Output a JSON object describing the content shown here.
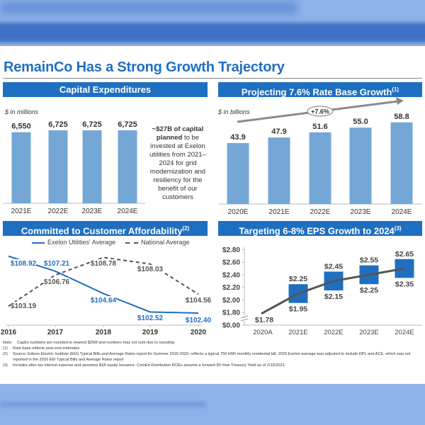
{
  "title": "RemainCo Has a Strong Growth Trajectory",
  "colors": {
    "accent": "#1f6fc0",
    "bar": "#74a7d6",
    "dark_line": "#555555",
    "eps_box": "#1f6fc0",
    "blur_bg": "#8fb1e9"
  },
  "panels": {
    "capex": {
      "header": "Capital Expenditures",
      "unit": "$ in millions",
      "note_bold": "~$27B of capital planned",
      "note_rest": " to be invested at Exelon utilities from 2021–2024 for grid modernization and resiliency for the benefit of our customers"
    },
    "ratebase": {
      "header": "Projecting 7.6% Rate Base Growth",
      "sup": "(1)",
      "unit": "$ in billions",
      "growth_label": "+7.6%"
    },
    "afford": {
      "header": "Committed to Customer Affordability",
      "sup": "(2)"
    },
    "eps": {
      "header": "Targeting 6-8% EPS Growth to 2024",
      "sup": "(3)"
    }
  },
  "chart_data": [
    {
      "type": "bar",
      "title": "Capital Expenditures",
      "ylabel": "$ in millions",
      "categories": [
        "2021E",
        "2022E",
        "2023E",
        "2024E"
      ],
      "values": [
        6550,
        6725,
        6725,
        6725
      ],
      "labels": [
        "6,550",
        "6,725",
        "6,725",
        "6,725"
      ]
    },
    {
      "type": "bar",
      "title": "Projecting 7.6% Rate Base Growth",
      "ylabel": "$ in billions",
      "categories": [
        "2020E",
        "2021E",
        "2022E",
        "2023E",
        "2024E"
      ],
      "values": [
        43.9,
        47.9,
        51.6,
        55.0,
        58.8
      ],
      "labels": [
        "43.9",
        "47.9",
        "51.6",
        "55.0",
        "58.8"
      ],
      "annotation": "+7.6%"
    },
    {
      "type": "line",
      "title": "Committed to Customer Affordability",
      "categories": [
        "2016",
        "2017",
        "2018",
        "2019",
        "2020"
      ],
      "legend_position": "top",
      "series": [
        {
          "name": "Exelon Utilities' Average",
          "values": [
            108.92,
            107.21,
            104.64,
            102.52,
            102.4
          ],
          "labels": [
            "$108.92",
            "$107.21",
            "$104.64",
            "$102.52",
            "$102.40"
          ],
          "style": "solid",
          "color": "#1f6fc0"
        },
        {
          "name": "National Average",
          "values": [
            103.19,
            106.76,
            108.78,
            108.03,
            104.56
          ],
          "labels": [
            "$103.19",
            "$106.76",
            "$108.78",
            "$108.03",
            "$104.56"
          ],
          "style": "dashed",
          "color": "#555555"
        }
      ]
    },
    {
      "type": "bar",
      "subtype": "floating-range-with-line",
      "title": "Targeting 6-8% EPS Growth to 2024",
      "categories": [
        "2020A",
        "2021E",
        "2022E",
        "2023E",
        "2024E"
      ],
      "yticks": [
        "$0.00",
        "$1.80",
        "$2.00",
        "$2.20",
        "$2.40",
        "$2.60",
        "$2.80"
      ],
      "ylim": [
        1.8,
        2.8
      ],
      "axis_break": true,
      "actual": {
        "value": 1.78,
        "label": "$1.78"
      },
      "ranges": [
        null,
        {
          "low": 1.95,
          "high": 2.25,
          "low_label": "$1.95",
          "high_label": "$2.25"
        },
        {
          "low": 2.15,
          "high": 2.45,
          "low_label": "$2.15",
          "high_label": "$2.45"
        },
        {
          "low": 2.25,
          "high": 2.55,
          "low_label": "$2.25",
          "high_label": "$2.55"
        },
        {
          "low": 2.35,
          "high": 2.65,
          "low_label": "$2.35",
          "high_label": "$2.65"
        }
      ],
      "midline": [
        1.78,
        2.1,
        2.3,
        2.4,
        2.5
      ]
    }
  ],
  "footnotes": [
    {
      "key": "Note:",
      "text": "CapEx numbers are rounded to nearest $25M and numbers may not sum due to rounding"
    },
    {
      "key": "(1)",
      "text": "Rate base reflects year-end estimates"
    },
    {
      "key": "(2)",
      "text": "Source: Edison Electric Institute (EEI) Typical Bills and Average Rates report for Summer 2016-2020; reflects a typical 750 kWh monthly residential bill; 2020 Exelon average was adjusted to include DPL and ACE, which was not reported in the 2020 EEI Typical Bills and Average Rates report"
    },
    {
      "key": "(3)",
      "text": "Includes after-tax interest expense and assumes $1B equity issuance. ComEd Distribution ROEs assume a forward 30-Year Treasury Yield as of 2/19/2021."
    }
  ]
}
